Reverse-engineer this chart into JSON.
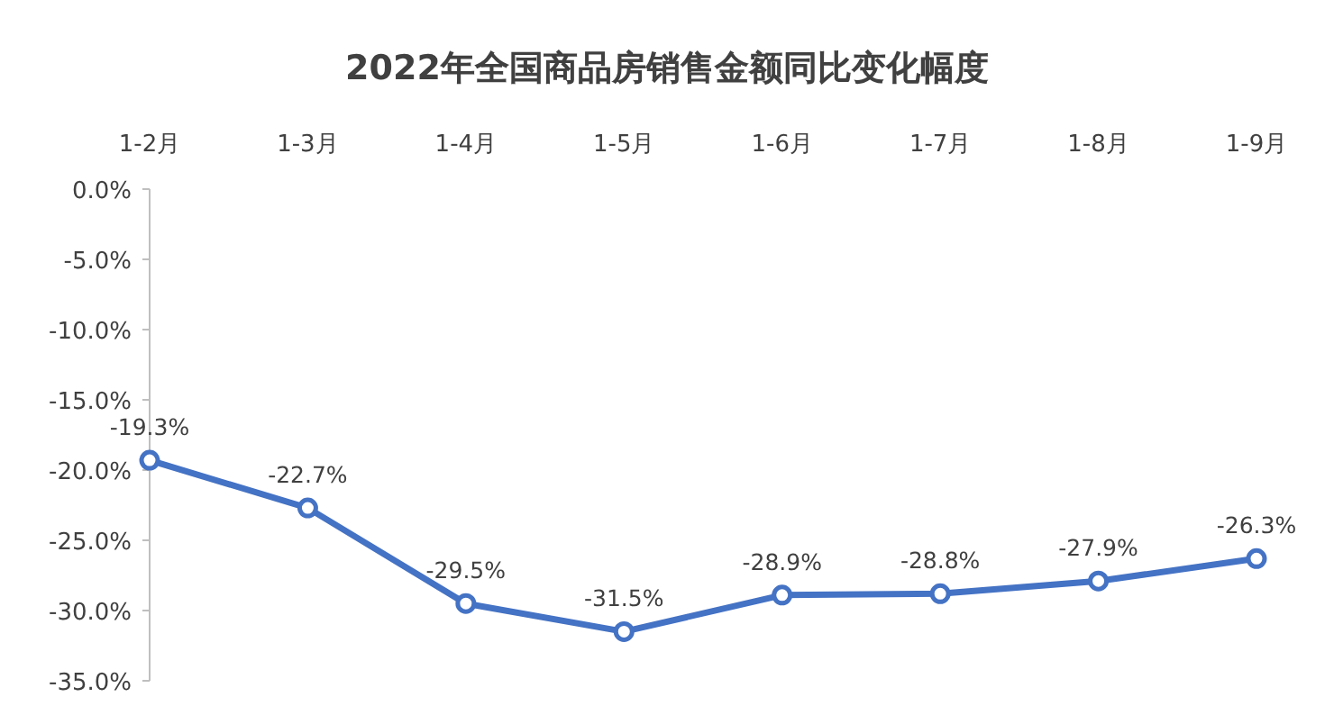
{
  "chart_data": {
    "type": "line",
    "title": "2022年全国商品房销售金额同比变化幅度",
    "categories": [
      "1-2月",
      "1-3月",
      "1-4月",
      "1-5月",
      "1-6月",
      "1-7月",
      "1-8月",
      "1-9月"
    ],
    "values": [
      -19.3,
      -22.7,
      -29.5,
      -31.5,
      -28.9,
      -28.8,
      -27.9,
      -26.3
    ],
    "value_labels": [
      "-19.3%",
      "-22.7%",
      "-29.5%",
      "-31.5%",
      "-28.9%",
      "-28.8%",
      "-27.9%",
      "-26.3%"
    ],
    "color": "#4472c4",
    "marker": "circle",
    "line_style": "solid",
    "grid": false,
    "ylim": [
      -35,
      0
    ],
    "yticks": [
      {
        "value": 0,
        "label": "0.0%"
      },
      {
        "value": -5,
        "label": "-5.0%"
      },
      {
        "value": -10,
        "label": "-10.0%"
      },
      {
        "value": -15,
        "label": "-15.0%"
      },
      {
        "value": -20,
        "label": "-20.0%"
      },
      {
        "value": -25,
        "label": "-25.0%"
      },
      {
        "value": -30,
        "label": "-30.0%"
      },
      {
        "value": -35,
        "label": "-35.0%"
      }
    ]
  }
}
